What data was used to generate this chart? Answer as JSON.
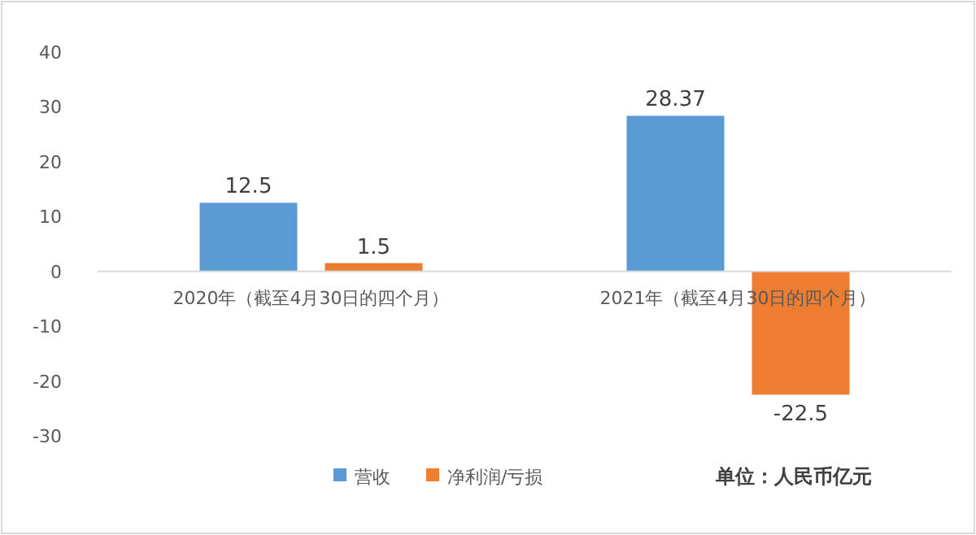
{
  "chart_data": {
    "type": "bar",
    "categories": [
      "2020年（截至4月30日的四个月）",
      "2021年（截至4月30日的四个月）"
    ],
    "series": [
      {
        "name": "营收",
        "color": "#5b9bd5",
        "values": [
          12.5,
          28.37
        ]
      },
      {
        "name": "净利润/亏损",
        "color": "#ed7d31",
        "values": [
          1.5,
          -22.5
        ]
      }
    ],
    "ylim": [
      -30,
      40
    ],
    "yticks": [
      -30,
      -20,
      -10,
      0,
      10,
      20,
      30,
      40
    ],
    "data_labels": true,
    "legend": "bottom",
    "annotations": [
      "单位：人民币亿元"
    ]
  }
}
